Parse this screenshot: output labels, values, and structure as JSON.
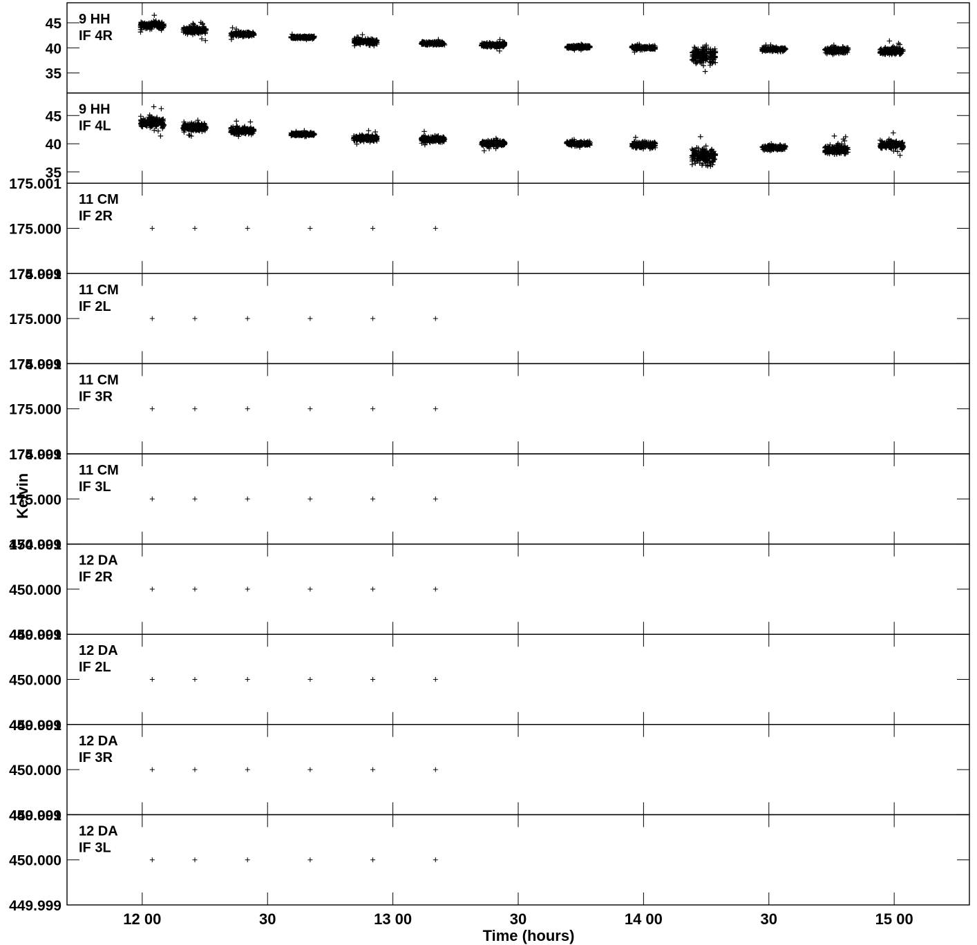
{
  "chart_data": {
    "type": "scatter",
    "xlabel": "Time (hours)",
    "ylabel": "Kelvin",
    "xlim": [
      11.7,
      15.3
    ],
    "x_ticks": [
      {
        "value": 12.0,
        "label": "12 00"
      },
      {
        "value": 12.5,
        "label": "30"
      },
      {
        "value": 13.0,
        "label": "13 00"
      },
      {
        "value": 13.5,
        "label": "30"
      },
      {
        "value": 14.0,
        "label": "14 00"
      },
      {
        "value": 14.5,
        "label": "30"
      },
      {
        "value": 15.0,
        "label": "15 00"
      }
    ],
    "marker": "+",
    "panels": [
      {
        "label1": "9 HH",
        "label2": "IF 4R",
        "ylim": [
          31,
          49
        ],
        "yticks": [
          {
            "value": 35,
            "label": "35"
          },
          {
            "value": 40,
            "label": "40"
          },
          {
            "value": 45,
            "label": "45"
          }
        ],
        "clusters": [
          {
            "x": 12.04,
            "y": 44.5,
            "spread": 1.0
          },
          {
            "x": 12.21,
            "y": 43.5,
            "spread": 0.9
          },
          {
            "x": 12.4,
            "y": 42.7,
            "spread": 0.7
          },
          {
            "x": 12.64,
            "y": 42.1,
            "spread": 0.4
          },
          {
            "x": 12.89,
            "y": 41.3,
            "spread": 0.7
          },
          {
            "x": 13.16,
            "y": 40.9,
            "spread": 0.5
          },
          {
            "x": 13.4,
            "y": 40.6,
            "spread": 0.6
          },
          {
            "x": 13.74,
            "y": 40.2,
            "spread": 0.5
          },
          {
            "x": 14.0,
            "y": 40.0,
            "spread": 0.5
          },
          {
            "x": 14.24,
            "y": 38.5,
            "spread": 2.6
          },
          {
            "x": 14.52,
            "y": 39.7,
            "spread": 0.6
          },
          {
            "x": 14.77,
            "y": 39.5,
            "spread": 0.9
          },
          {
            "x": 14.99,
            "y": 39.4,
            "spread": 1.0
          }
        ]
      },
      {
        "label1": "9 HH",
        "label2": "IF 4L",
        "ylim": [
          33,
          49
        ],
        "yticks": [
          {
            "value": 35,
            "label": "35"
          },
          {
            "value": 40,
            "label": "40"
          },
          {
            "value": 45,
            "label": "45"
          }
        ],
        "clusters": [
          {
            "x": 12.04,
            "y": 43.8,
            "spread": 1.3
          },
          {
            "x": 12.21,
            "y": 42.9,
            "spread": 1.0
          },
          {
            "x": 12.4,
            "y": 42.3,
            "spread": 0.9
          },
          {
            "x": 12.64,
            "y": 41.7,
            "spread": 0.4
          },
          {
            "x": 12.89,
            "y": 41.0,
            "spread": 0.8
          },
          {
            "x": 13.16,
            "y": 40.8,
            "spread": 0.8
          },
          {
            "x": 13.4,
            "y": 40.1,
            "spread": 0.8
          },
          {
            "x": 13.74,
            "y": 40.0,
            "spread": 0.5
          },
          {
            "x": 14.0,
            "y": 39.8,
            "spread": 0.9
          },
          {
            "x": 14.24,
            "y": 37.8,
            "spread": 2.3
          },
          {
            "x": 14.52,
            "y": 39.3,
            "spread": 0.6
          },
          {
            "x": 14.77,
            "y": 39.0,
            "spread": 1.2
          },
          {
            "x": 14.99,
            "y": 39.8,
            "spread": 1.0
          }
        ]
      },
      {
        "label1": "11 CM",
        "label2": "IF 2R",
        "ylim": [
          174.999,
          175.001
        ],
        "yticks": [
          {
            "value": 174.999,
            "label": "174.999"
          },
          {
            "value": 175.0,
            "label": "175.000"
          },
          {
            "value": 175.001,
            "label": "175.001"
          }
        ],
        "x": [
          12.04,
          12.21,
          12.42,
          12.67,
          12.92,
          13.17
        ],
        "y": [
          175.0,
          175.0,
          175.0,
          175.0,
          175.0,
          175.0
        ]
      },
      {
        "label1": "11 CM",
        "label2": "IF 2L",
        "ylim": [
          174.999,
          175.001
        ],
        "yticks": [
          {
            "value": 174.999,
            "label": "174.999"
          },
          {
            "value": 175.0,
            "label": "175.000"
          },
          {
            "value": 175.001,
            "label": "175.001"
          }
        ],
        "x": [
          12.04,
          12.21,
          12.42,
          12.67,
          12.92,
          13.17
        ],
        "y": [
          175.0,
          175.0,
          175.0,
          175.0,
          175.0,
          175.0
        ]
      },
      {
        "label1": "11 CM",
        "label2": "IF 3R",
        "ylim": [
          174.999,
          175.001
        ],
        "yticks": [
          {
            "value": 174.999,
            "label": "174.999"
          },
          {
            "value": 175.0,
            "label": "175.000"
          },
          {
            "value": 175.001,
            "label": "175.001"
          }
        ],
        "x": [
          12.04,
          12.21,
          12.42,
          12.67,
          12.92,
          13.17
        ],
        "y": [
          175.0,
          175.0,
          175.0,
          175.0,
          175.0,
          175.0
        ]
      },
      {
        "label1": "11 CM",
        "label2": "IF 3L",
        "ylim": [
          174.999,
          175.001
        ],
        "yticks": [
          {
            "value": 174.999,
            "label": "174.999"
          },
          {
            "value": 175.0,
            "label": "175.000"
          },
          {
            "value": 175.001,
            "label": "175.001"
          }
        ],
        "x": [
          12.04,
          12.21,
          12.42,
          12.67,
          12.92,
          13.17
        ],
        "y": [
          175.0,
          175.0,
          175.0,
          175.0,
          175.0,
          175.0
        ]
      },
      {
        "label1": "12 DA",
        "label2": "IF 2R",
        "ylim": [
          449.999,
          450.001
        ],
        "yticks": [
          {
            "value": 449.999,
            "label": "449.999"
          },
          {
            "value": 450.0,
            "label": "450.000"
          },
          {
            "value": 450.001,
            "label": "450.001"
          }
        ],
        "x": [
          12.04,
          12.21,
          12.42,
          12.67,
          12.92,
          13.17
        ],
        "y": [
          450.0,
          450.0,
          450.0,
          450.0,
          450.0,
          450.0
        ]
      },
      {
        "label1": "12 DA",
        "label2": "IF 2L",
        "ylim": [
          449.999,
          450.001
        ],
        "yticks": [
          {
            "value": 449.999,
            "label": "449.999"
          },
          {
            "value": 450.0,
            "label": "450.000"
          },
          {
            "value": 450.001,
            "label": "450.001"
          }
        ],
        "x": [
          12.04,
          12.21,
          12.42,
          12.67,
          12.92,
          13.17
        ],
        "y": [
          450.0,
          450.0,
          450.0,
          450.0,
          450.0,
          450.0
        ]
      },
      {
        "label1": "12 DA",
        "label2": "IF 3R",
        "ylim": [
          449.999,
          450.001
        ],
        "yticks": [
          {
            "value": 449.999,
            "label": "449.999"
          },
          {
            "value": 450.0,
            "label": "450.000"
          },
          {
            "value": 450.001,
            "label": "450.001"
          }
        ],
        "x": [
          12.04,
          12.21,
          12.42,
          12.67,
          12.92,
          13.17
        ],
        "y": [
          450.0,
          450.0,
          450.0,
          450.0,
          450.0,
          450.0
        ]
      },
      {
        "label1": "12 DA",
        "label2": "IF 3L",
        "ylim": [
          449.999,
          450.001
        ],
        "yticks": [
          {
            "value": 449.999,
            "label": "449.999"
          },
          {
            "value": 450.0,
            "label": "450.000"
          },
          {
            "value": 450.001,
            "label": "450.001"
          }
        ],
        "x": [
          12.04,
          12.21,
          12.42,
          12.67,
          12.92,
          13.17
        ],
        "y": [
          450.0,
          450.0,
          450.0,
          450.0,
          450.0,
          450.0
        ]
      }
    ]
  }
}
